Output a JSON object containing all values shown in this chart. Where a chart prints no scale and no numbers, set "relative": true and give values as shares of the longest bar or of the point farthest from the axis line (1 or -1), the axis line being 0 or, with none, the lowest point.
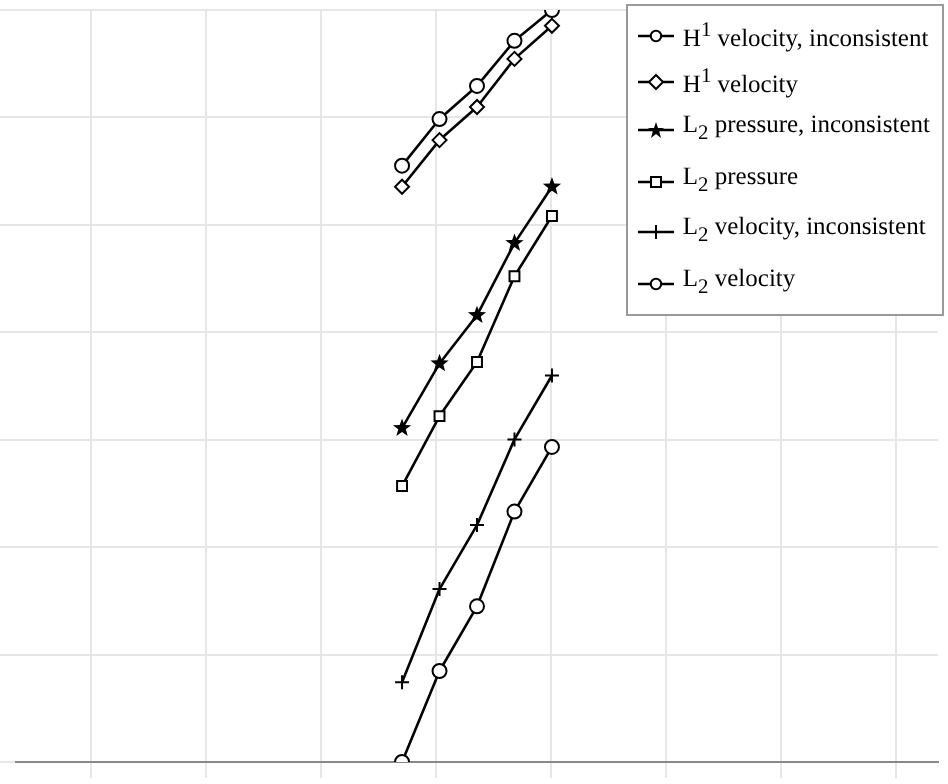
{
  "chart_data": {
    "type": "line",
    "relative": true,
    "grid": true,
    "legend": "top right",
    "line_style": "solid",
    "categories": [
      null,
      null,
      null,
      null,
      null
    ],
    "series": [
      {
        "name": "H$^{1}$ velocity, inconsistent",
        "color": "#000000",
        "marker": "circle",
        "values": [
          0.793,
          0.855,
          0.899,
          0.959,
          1
        ]
      },
      {
        "name": "H$^{1}$ velocity",
        "color": "#000000",
        "marker": "diamond",
        "values": [
          0.765,
          0.827,
          0.871,
          0.935,
          0.979
        ]
      },
      {
        "name": "L$_{2}$ pressure, inconsistent",
        "color": "#000000",
        "marker": "star",
        "values": [
          0.444,
          0.53,
          0.594,
          0.69,
          0.765
        ]
      },
      {
        "name": "L$_{2}$ pressure",
        "color": "#000000",
        "marker": "square",
        "values": [
          0.367,
          0.46,
          0.532,
          0.646,
          0.726
        ]
      },
      {
        "name": "L$_{2}$ velocity, inconsistent",
        "color": "#000000",
        "marker": "cross",
        "values": [
          0.106,
          0.23,
          0.315,
          0.429,
          0.514
        ]
      },
      {
        "name": "L$_{2}$ velocity",
        "color": "#000000",
        "marker": "circle",
        "values": [
          0,
          0.121,
          0.207,
          0.333,
          0.419
        ]
      }
    ]
  }
}
